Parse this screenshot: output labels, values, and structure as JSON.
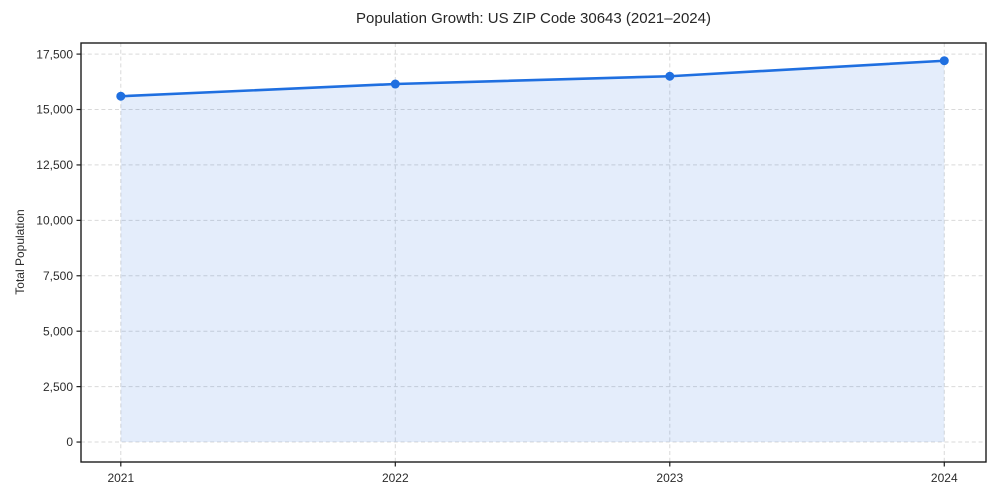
{
  "chart_data": {
    "type": "area",
    "title": "Population Growth: US ZIP Code 30643 (2021–2024)",
    "xlabel": "",
    "ylabel": "Total Population",
    "x": [
      2021,
      2022,
      2023,
      2024
    ],
    "xtick_labels": [
      "2021",
      "2022",
      "2023",
      "2024"
    ],
    "series": [
      {
        "name": "Total Population",
        "values": [
          15600,
          16150,
          16500,
          17200
        ]
      }
    ],
    "yticks": [
      0,
      2500,
      5000,
      7500,
      10000,
      12500,
      15000,
      17500
    ],
    "ytick_labels": [
      "0",
      "2,500",
      "5,000",
      "7,500",
      "10,000",
      "12,500",
      "15,000",
      "17,500"
    ],
    "xlim": [
      2020.855,
      2024.152
    ],
    "ylim": [
      -900,
      18000
    ],
    "grid": true,
    "legend": "none",
    "marker": "circle",
    "area_baseline": 0,
    "colors": {
      "line": "#1f6fe0",
      "fill_opacity": 0.12,
      "grid": "#d9d9d9",
      "spine": "#1c1c1c",
      "tick_text": "#2b2b2b",
      "title_text": "#262626",
      "background": "#ffffff"
    }
  }
}
